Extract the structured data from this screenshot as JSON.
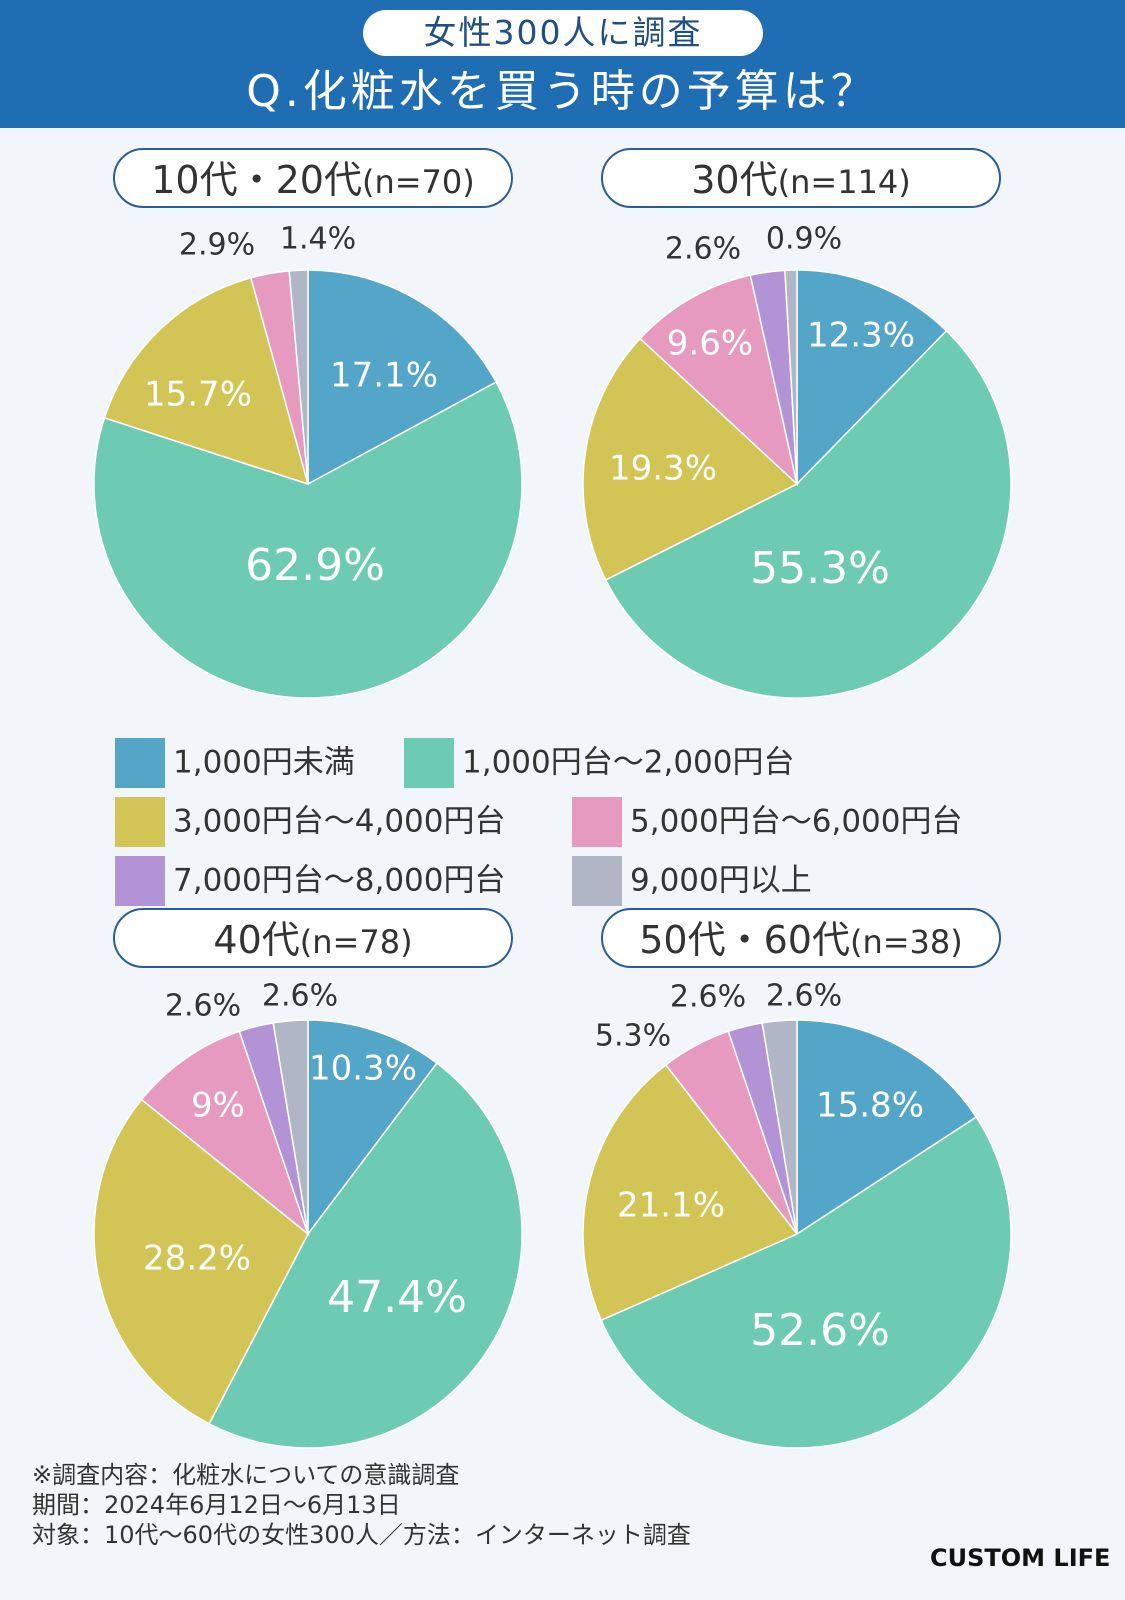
{
  "header": {
    "badge": "女性300人に調査",
    "title": "Q.化粧水を買う時の予算は？"
  },
  "legend": [
    {
      "label": "1,000円未満",
      "color": "#53a6c7"
    },
    {
      "label": "1,000円台～2,000円台",
      "color": "#6dcbb3"
    },
    {
      "label": "3,000円台～4,000円台",
      "color": "#d3c456"
    },
    {
      "label": "5,000円台～6,000円台",
      "color": "#e79ac0"
    },
    {
      "label": "7,000円台～8,000円台",
      "color": "#b193d6"
    },
    {
      "label": "9,000円以上",
      "color": "#b1b6c7"
    }
  ],
  "chart_data": [
    {
      "type": "pie",
      "title": "10代・20代",
      "n_label": "(n=70)",
      "values": [
        17.1,
        62.9,
        15.7,
        2.9,
        1.4
      ],
      "labels": [
        "17.1%",
        "62.9%",
        "15.7%",
        "2.9%",
        "1.4%"
      ],
      "categories": [
        "1,000円未満",
        "1,000円台～2,000円台",
        "3,000円台～4,000円台",
        "5,000円台～6,000円台",
        "9,000円以上"
      ],
      "colors": [
        "#53a6c7",
        "#6dcbb3",
        "#d3c456",
        "#e79ac0",
        "#b1b6c7"
      ]
    },
    {
      "type": "pie",
      "title": "30代",
      "n_label": "(n=114)",
      "values": [
        12.3,
        55.3,
        19.3,
        9.6,
        2.6,
        0.9
      ],
      "labels": [
        "12.3%",
        "55.3%",
        "19.3%",
        "9.6%",
        "2.6%",
        "0.9%"
      ],
      "categories": [
        "1,000円未満",
        "1,000円台～2,000円台",
        "3,000円台～4,000円台",
        "5,000円台～6,000円台",
        "7,000円台～8,000円台",
        "9,000円以上"
      ],
      "colors": [
        "#53a6c7",
        "#6dcbb3",
        "#d3c456",
        "#e79ac0",
        "#b193d6",
        "#b1b6c7"
      ]
    },
    {
      "type": "pie",
      "title": "40代",
      "n_label": "(n=78)",
      "values": [
        10.3,
        47.4,
        28.2,
        9,
        2.6,
        2.6
      ],
      "labels": [
        "10.3%",
        "47.4%",
        "28.2%",
        "9%",
        "2.6%",
        "2.6%"
      ],
      "categories": [
        "1,000円未満",
        "1,000円台～2,000円台",
        "3,000円台～4,000円台",
        "5,000円台～6,000円台",
        "7,000円台～8,000円台",
        "9,000円以上"
      ],
      "colors": [
        "#53a6c7",
        "#6dcbb3",
        "#d3c456",
        "#e79ac0",
        "#b193d6",
        "#b1b6c7"
      ]
    },
    {
      "type": "pie",
      "title": "50代・60代",
      "n_label": "(n=38)",
      "values": [
        15.8,
        52.6,
        21.1,
        5.3,
        2.6,
        2.6
      ],
      "labels": [
        "15.8%",
        "52.6%",
        "21.1%",
        "5.3%",
        "2.6%",
        "2.6%"
      ],
      "categories": [
        "1,000円未満",
        "1,000円台～2,000円台",
        "3,000円台～4,000円台",
        "5,000円台～6,000円台",
        "7,000円台～8,000円台",
        "9,000円以上"
      ],
      "colors": [
        "#53a6c7",
        "#6dcbb3",
        "#d3c456",
        "#e79ac0",
        "#b193d6",
        "#b1b6c7"
      ]
    }
  ],
  "footnote": {
    "line1": "※調査内容：化粧水についての意識調査",
    "line2": "期間：2024年6月12日～6月13日",
    "line3": "対象：10代～60代の女性300人／方法：インターネット調査"
  },
  "brand": "CUSTOM LIFE"
}
